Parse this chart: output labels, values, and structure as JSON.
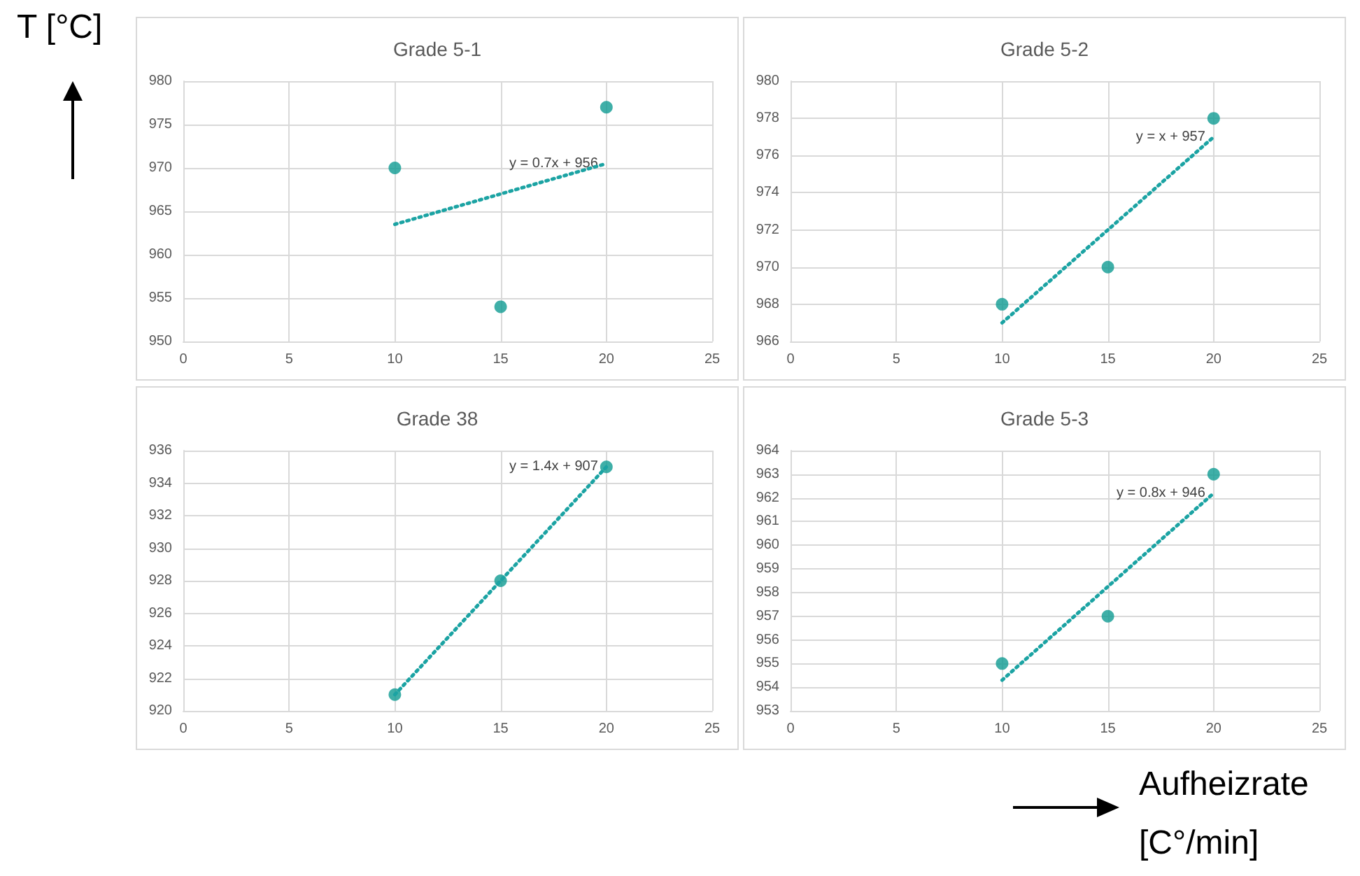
{
  "chart_data": [
    {
      "type": "scatter",
      "title": "Grade 5-1",
      "ylabel": "T [°C]",
      "xlim": [
        0,
        25
      ],
      "xticks": [
        0,
        5,
        10,
        15,
        20,
        25
      ],
      "ylim": [
        950,
        980
      ],
      "yticks": [
        950,
        955,
        960,
        965,
        970,
        975,
        980
      ],
      "grid": true,
      "marker": "circle",
      "series": [
        {
          "type": "scatter",
          "color": "#0f9b92",
          "x": [
            10,
            15,
            20
          ],
          "values": [
            970,
            954,
            977
          ]
        },
        {
          "type": "line",
          "color": "#1ba3a3",
          "line_style": "dotted",
          "marker": "none",
          "x": [
            10,
            20
          ],
          "values": [
            963.5,
            970.5
          ]
        }
      ],
      "annotations": [
        "y = 0.7x + 956"
      ]
    },
    {
      "type": "scatter",
      "title": "Grade 5-2",
      "xlim": [
        0,
        25
      ],
      "xticks": [
        0,
        5,
        10,
        15,
        20,
        25
      ],
      "ylim": [
        966,
        980
      ],
      "yticks": [
        966,
        968,
        970,
        972,
        974,
        976,
        978,
        980
      ],
      "grid": true,
      "marker": "circle",
      "series": [
        {
          "type": "scatter",
          "color": "#0f9b92",
          "x": [
            10,
            15,
            20
          ],
          "values": [
            968,
            970,
            978
          ]
        },
        {
          "type": "line",
          "color": "#1ba3a3",
          "line_style": "dotted",
          "marker": "none",
          "x": [
            10,
            20
          ],
          "values": [
            967,
            977
          ]
        }
      ],
      "annotations": [
        "y = x + 957"
      ]
    },
    {
      "type": "scatter",
      "title": "Grade 38",
      "xlim": [
        0,
        25
      ],
      "xticks": [
        0,
        5,
        10,
        15,
        20,
        25
      ],
      "ylim": [
        920,
        936
      ],
      "yticks": [
        920,
        922,
        924,
        926,
        928,
        930,
        932,
        934,
        936
      ],
      "grid": true,
      "marker": "circle",
      "series": [
        {
          "type": "scatter",
          "color": "#0f9b92",
          "x": [
            10,
            15,
            20
          ],
          "values": [
            921,
            928,
            935
          ]
        },
        {
          "type": "line",
          "color": "#1ba3a3",
          "line_style": "dotted",
          "marker": "none",
          "x": [
            10,
            20
          ],
          "values": [
            921,
            935
          ]
        }
      ],
      "annotations": [
        "y = 1.4x + 907"
      ]
    },
    {
      "type": "scatter",
      "title": "Grade 5-3",
      "xlabel": "Aufheizrate [C°/min]",
      "xlim": [
        0,
        25
      ],
      "xticks": [
        0,
        5,
        10,
        15,
        20,
        25
      ],
      "ylim": [
        953,
        964
      ],
      "yticks": [
        953,
        954,
        955,
        956,
        957,
        958,
        959,
        960,
        961,
        962,
        963,
        964
      ],
      "grid": true,
      "marker": "circle",
      "series": [
        {
          "type": "scatter",
          "color": "#0f9b92",
          "x": [
            10,
            15,
            20
          ],
          "values": [
            955,
            957,
            963
          ]
        },
        {
          "type": "line",
          "color": "#1ba3a3",
          "line_style": "dotted",
          "marker": "none",
          "x": [
            10,
            20
          ],
          "values": [
            954.3,
            962.2
          ]
        }
      ],
      "annotations": [
        "y = 0.8x + 946"
      ]
    }
  ]
}
